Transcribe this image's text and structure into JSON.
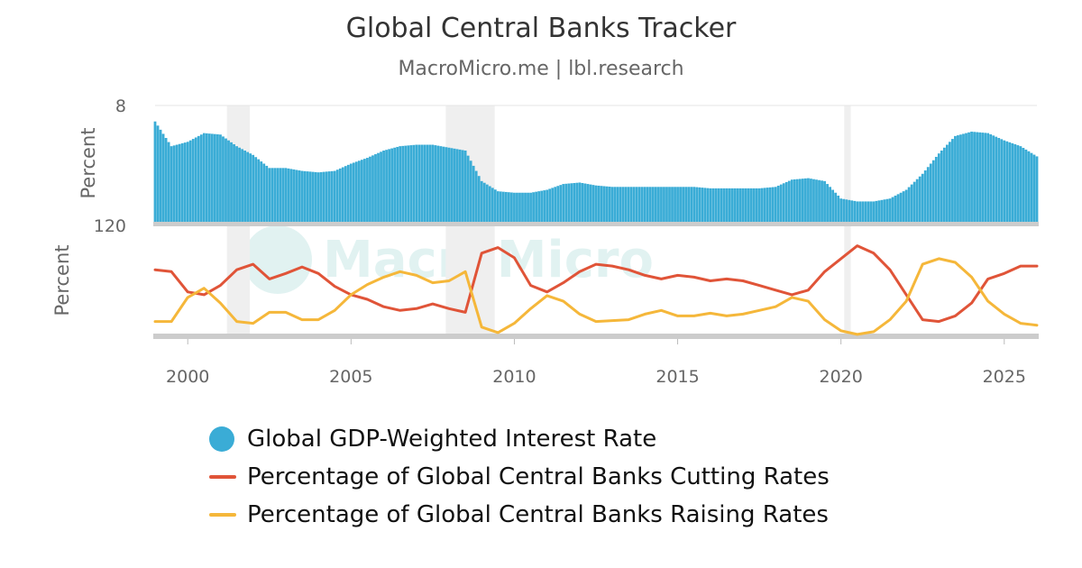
{
  "chart_data": {
    "type": "bar+line",
    "title": "Global Central Banks Tracker",
    "subtitle": "MacroMicro.me | lbl.research",
    "watermark": "MacroMicro",
    "x_range": [
      1999.0,
      2026.0
    ],
    "x_ticks": [
      "2000",
      "2005",
      "2010",
      "2015",
      "2020",
      "2025"
    ],
    "top_panel": {
      "ylabel": "Percent",
      "ytick_top": "8",
      "ylim": [
        0,
        8
      ],
      "series": [
        {
          "name": "Global GDP-Weighted Interest Rate",
          "color": "#3aacd6",
          "type": "bar",
          "points": [
            [
              1999.0,
              6.9
            ],
            [
              1999.5,
              5.2
            ],
            [
              2000.0,
              5.5
            ],
            [
              2000.5,
              6.1
            ],
            [
              2001.0,
              6.0
            ],
            [
              2001.5,
              5.2
            ],
            [
              2002.0,
              4.6
            ],
            [
              2002.5,
              3.7
            ],
            [
              2003.0,
              3.7
            ],
            [
              2003.5,
              3.5
            ],
            [
              2004.0,
              3.4
            ],
            [
              2004.5,
              3.5
            ],
            [
              2005.0,
              4.0
            ],
            [
              2005.5,
              4.4
            ],
            [
              2006.0,
              4.9
            ],
            [
              2006.5,
              5.2
            ],
            [
              2007.0,
              5.3
            ],
            [
              2007.5,
              5.3
            ],
            [
              2008.0,
              5.1
            ],
            [
              2008.5,
              4.9
            ],
            [
              2009.0,
              2.8
            ],
            [
              2009.5,
              2.1
            ],
            [
              2010.0,
              2.0
            ],
            [
              2010.5,
              2.0
            ],
            [
              2011.0,
              2.2
            ],
            [
              2011.5,
              2.6
            ],
            [
              2012.0,
              2.7
            ],
            [
              2012.5,
              2.5
            ],
            [
              2013.0,
              2.4
            ],
            [
              2013.5,
              2.4
            ],
            [
              2014.0,
              2.4
            ],
            [
              2014.5,
              2.4
            ],
            [
              2015.0,
              2.4
            ],
            [
              2015.5,
              2.4
            ],
            [
              2016.0,
              2.3
            ],
            [
              2016.5,
              2.3
            ],
            [
              2017.0,
              2.3
            ],
            [
              2017.5,
              2.3
            ],
            [
              2018.0,
              2.4
            ],
            [
              2018.5,
              2.9
            ],
            [
              2019.0,
              3.0
            ],
            [
              2019.5,
              2.8
            ],
            [
              2020.0,
              1.6
            ],
            [
              2020.5,
              1.4
            ],
            [
              2021.0,
              1.4
            ],
            [
              2021.5,
              1.6
            ],
            [
              2022.0,
              2.2
            ],
            [
              2022.5,
              3.3
            ],
            [
              2023.0,
              4.7
            ],
            [
              2023.5,
              5.9
            ],
            [
              2024.0,
              6.2
            ],
            [
              2024.5,
              6.1
            ],
            [
              2025.0,
              5.6
            ],
            [
              2025.5,
              5.2
            ],
            [
              2026.0,
              4.5
            ]
          ]
        }
      ]
    },
    "bottom_panel": {
      "ylabel": "Percent",
      "ytick_top": "120",
      "ylim": [
        0,
        120
      ],
      "series": [
        {
          "name": "Percentage of Global Central Banks Cutting Rates",
          "color": "#e05438",
          "type": "line",
          "points": [
            [
              1999.0,
              72
            ],
            [
              1999.5,
              70
            ],
            [
              2000.0,
              48
            ],
            [
              2000.5,
              45
            ],
            [
              2001.0,
              55
            ],
            [
              2001.5,
              72
            ],
            [
              2002.0,
              78
            ],
            [
              2002.5,
              62
            ],
            [
              2003.0,
              68
            ],
            [
              2003.5,
              75
            ],
            [
              2004.0,
              68
            ],
            [
              2004.5,
              54
            ],
            [
              2005.0,
              45
            ],
            [
              2005.5,
              40
            ],
            [
              2006.0,
              32
            ],
            [
              2006.5,
              28
            ],
            [
              2007.0,
              30
            ],
            [
              2007.5,
              35
            ],
            [
              2008.0,
              30
            ],
            [
              2008.5,
              26
            ],
            [
              2009.0,
              90
            ],
            [
              2009.5,
              96
            ],
            [
              2010.0,
              85
            ],
            [
              2010.5,
              55
            ],
            [
              2011.0,
              48
            ],
            [
              2011.5,
              58
            ],
            [
              2012.0,
              70
            ],
            [
              2012.5,
              78
            ],
            [
              2013.0,
              76
            ],
            [
              2013.5,
              72
            ],
            [
              2014.0,
              66
            ],
            [
              2014.5,
              62
            ],
            [
              2015.0,
              66
            ],
            [
              2015.5,
              64
            ],
            [
              2016.0,
              60
            ],
            [
              2016.5,
              62
            ],
            [
              2017.0,
              60
            ],
            [
              2017.5,
              55
            ],
            [
              2018.0,
              50
            ],
            [
              2018.5,
              45
            ],
            [
              2019.0,
              50
            ],
            [
              2019.5,
              70
            ],
            [
              2020.0,
              84
            ],
            [
              2020.5,
              98
            ],
            [
              2021.0,
              90
            ],
            [
              2021.5,
              72
            ],
            [
              2022.0,
              45
            ],
            [
              2022.5,
              18
            ],
            [
              2023.0,
              16
            ],
            [
              2023.5,
              22
            ],
            [
              2024.0,
              36
            ],
            [
              2024.5,
              62
            ],
            [
              2025.0,
              68
            ],
            [
              2025.5,
              76
            ],
            [
              2026.0,
              76
            ]
          ]
        },
        {
          "name": "Percentage of Global Central Banks Raising Rates",
          "color": "#f5b73a",
          "type": "line",
          "points": [
            [
              1999.0,
              16
            ],
            [
              1999.5,
              16
            ],
            [
              2000.0,
              42
            ],
            [
              2000.5,
              52
            ],
            [
              2001.0,
              36
            ],
            [
              2001.5,
              16
            ],
            [
              2002.0,
              14
            ],
            [
              2002.5,
              26
            ],
            [
              2003.0,
              26
            ],
            [
              2003.5,
              18
            ],
            [
              2004.0,
              18
            ],
            [
              2004.5,
              28
            ],
            [
              2005.0,
              45
            ],
            [
              2005.5,
              56
            ],
            [
              2006.0,
              64
            ],
            [
              2006.5,
              70
            ],
            [
              2007.0,
              66
            ],
            [
              2007.5,
              58
            ],
            [
              2008.0,
              60
            ],
            [
              2008.5,
              70
            ],
            [
              2009.0,
              10
            ],
            [
              2009.5,
              4
            ],
            [
              2010.0,
              14
            ],
            [
              2010.5,
              30
            ],
            [
              2011.0,
              44
            ],
            [
              2011.5,
              38
            ],
            [
              2012.0,
              24
            ],
            [
              2012.5,
              16
            ],
            [
              2013.0,
              17
            ],
            [
              2013.5,
              18
            ],
            [
              2014.0,
              24
            ],
            [
              2014.5,
              28
            ],
            [
              2015.0,
              22
            ],
            [
              2015.5,
              22
            ],
            [
              2016.0,
              25
            ],
            [
              2016.5,
              22
            ],
            [
              2017.0,
              24
            ],
            [
              2017.5,
              28
            ],
            [
              2018.0,
              32
            ],
            [
              2018.5,
              42
            ],
            [
              2019.0,
              38
            ],
            [
              2019.5,
              18
            ],
            [
              2020.0,
              6
            ],
            [
              2020.5,
              2
            ],
            [
              2021.0,
              5
            ],
            [
              2021.5,
              18
            ],
            [
              2022.0,
              38
            ],
            [
              2022.5,
              78
            ],
            [
              2023.0,
              84
            ],
            [
              2023.5,
              80
            ],
            [
              2024.0,
              64
            ],
            [
              2024.5,
              38
            ],
            [
              2025.0,
              24
            ],
            [
              2025.5,
              14
            ],
            [
              2026.0,
              12
            ]
          ]
        }
      ]
    },
    "recession_bands": [
      [
        2001.2,
        2001.9
      ],
      [
        2007.9,
        2009.4
      ],
      [
        2020.1,
        2020.3
      ]
    ],
    "legend": [
      {
        "name": "Global GDP-Weighted Interest Rate",
        "color": "#3aacd6",
        "marker": "dot"
      },
      {
        "name": "Percentage of Global Central Banks Cutting Rates",
        "color": "#e05438",
        "marker": "line"
      },
      {
        "name": "Percentage of Global Central Banks Raising Rates",
        "color": "#f5b73a",
        "marker": "line"
      }
    ],
    "legend_placement": "bottom",
    "grid": true
  }
}
